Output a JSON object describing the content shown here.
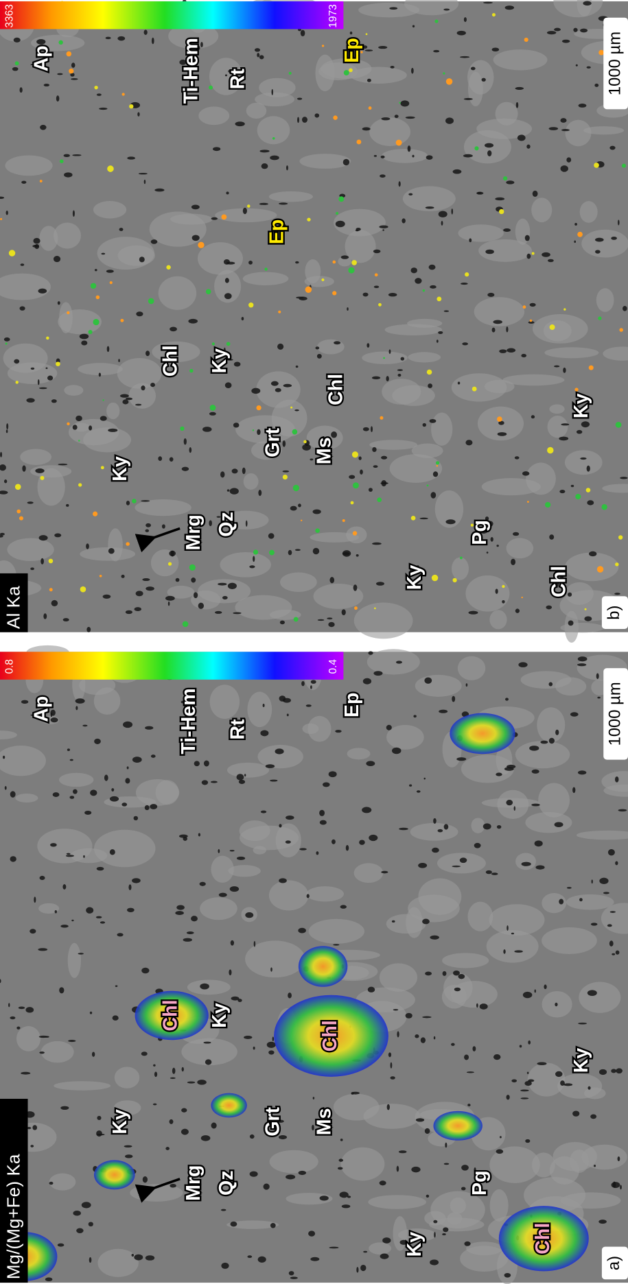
{
  "panels": [
    {
      "label": "a)",
      "channel": "Mg/(Mg+Fe) Ka",
      "colorbar": {
        "max": "0.8",
        "min": "0.4"
      },
      "scale_bar": "1000 µm",
      "minerals": [
        "Ap",
        "Ti-Hem",
        "Rt",
        "Ep",
        "Chl",
        "Ky",
        "Ky",
        "Grt",
        "Ms",
        "Chl",
        "Mrg",
        "Qz",
        "Pg",
        "Ky",
        "Chl",
        "Ky"
      ]
    },
    {
      "label": "b)",
      "channel": "Al Ka",
      "colorbar": {
        "max": "3363",
        "min": "1973"
      },
      "scale_bar": "1000 µm",
      "minerals": [
        "Ap",
        "Ti-Hem",
        "Rt",
        "Ep",
        "Ep",
        "Chl",
        "Ky",
        "Chl",
        "Ky",
        "Grt",
        "Ms",
        "Mrg",
        "Qz",
        "Pg",
        "Ky",
        "Chl",
        "Ky"
      ]
    }
  ]
}
